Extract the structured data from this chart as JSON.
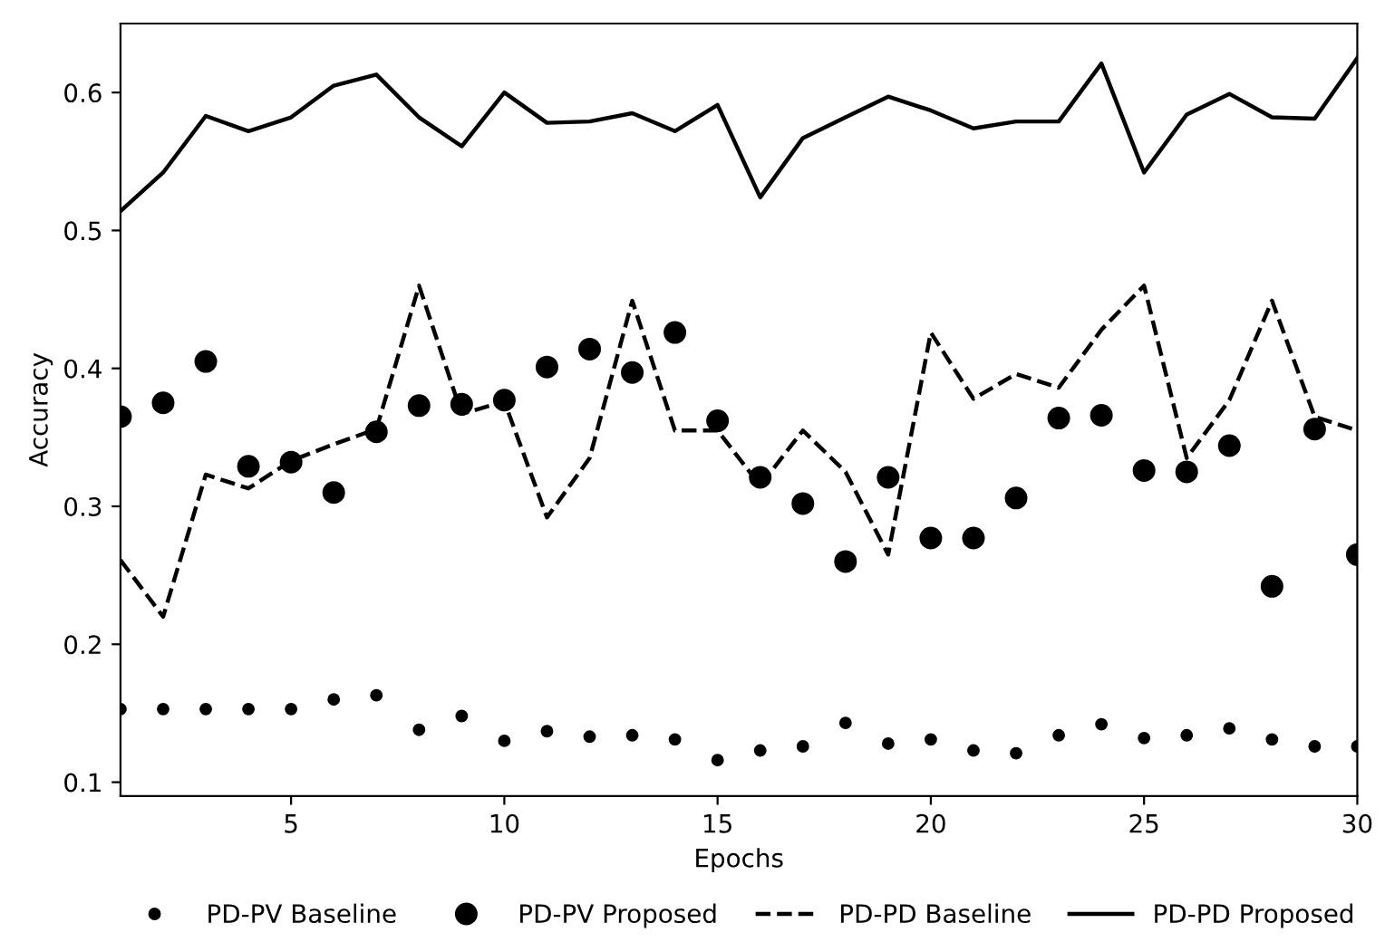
{
  "chart_data": {
    "type": "line",
    "xlabel": "Epochs",
    "ylabel": "Accuracy",
    "x": [
      1,
      2,
      3,
      4,
      5,
      6,
      7,
      8,
      9,
      10,
      11,
      12,
      13,
      14,
      15,
      16,
      17,
      18,
      19,
      20,
      21,
      22,
      23,
      24,
      25,
      26,
      27,
      28,
      29,
      30
    ],
    "xlim": [
      1,
      30
    ],
    "xticks": [
      5,
      10,
      15,
      20,
      25,
      30
    ],
    "ylim": [
      0.09,
      0.65
    ],
    "yticks": [
      0.1,
      0.2,
      0.3,
      0.4,
      0.5,
      0.6
    ],
    "grid": false,
    "legend": "bottom",
    "series": [
      {
        "name": "PD-PV Baseline",
        "type": "scatter",
        "marker": "circle",
        "color": "#000000",
        "values": [
          0.153,
          0.153,
          0.153,
          0.153,
          0.153,
          0.16,
          0.163,
          0.138,
          0.148,
          0.13,
          0.137,
          0.133,
          0.134,
          0.131,
          0.116,
          0.123,
          0.126,
          0.143,
          0.128,
          0.131,
          0.123,
          0.121,
          0.134,
          0.142,
          0.132,
          0.134,
          0.139,
          0.131,
          0.126,
          0.126
        ]
      },
      {
        "name": "PD-PV Proposed",
        "type": "scatter",
        "marker": "circle",
        "color": "#000000",
        "values": [
          0.365,
          0.375,
          0.405,
          0.329,
          0.332,
          0.31,
          0.354,
          0.373,
          0.374,
          0.377,
          0.401,
          0.414,
          0.397,
          0.426,
          0.362,
          0.321,
          0.302,
          0.26,
          0.321,
          0.277,
          0.277,
          0.306,
          0.364,
          0.366,
          0.326,
          0.325,
          0.344,
          0.242,
          0.356,
          0.265
        ]
      },
      {
        "name": "PD-PD Baseline",
        "line_style": "dashed",
        "color": "#000000",
        "values": [
          0.261,
          0.22,
          0.323,
          0.313,
          0.333,
          0.345,
          0.356,
          0.46,
          0.367,
          0.376,
          0.292,
          0.335,
          0.449,
          0.355,
          0.355,
          0.315,
          0.355,
          0.325,
          0.265,
          0.426,
          0.378,
          0.396,
          0.386,
          0.428,
          0.46,
          0.335,
          0.377,
          0.449,
          0.365,
          0.355
        ]
      },
      {
        "name": "PD-PD Proposed",
        "line_style": "solid",
        "color": "#000000",
        "values": [
          0.514,
          0.542,
          0.583,
          0.572,
          0.582,
          0.605,
          0.613,
          0.582,
          0.561,
          0.6,
          0.578,
          0.579,
          0.585,
          0.572,
          0.591,
          0.524,
          0.567,
          0.582,
          0.597,
          0.587,
          0.574,
          0.579,
          0.579,
          0.621,
          0.542,
          0.584,
          0.599,
          0.582,
          0.581,
          0.625
        ]
      }
    ]
  }
}
